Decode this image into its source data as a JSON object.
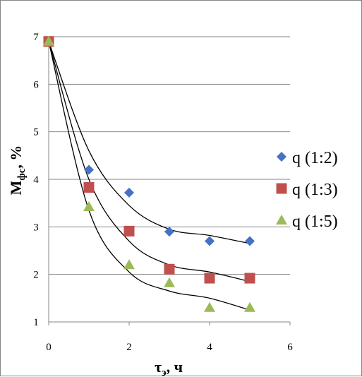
{
  "chart_data": {
    "type": "scatter",
    "title": "",
    "xlabel_main": "τ",
    "xlabel_sub": "э",
    "xlabel_rest": ", ч",
    "ylabel_main": "М",
    "ylabel_sub": "фс",
    "ylabel_rest": ", %",
    "xlim": [
      0,
      6
    ],
    "ylim": [
      1,
      7
    ],
    "xticks": [
      0,
      2,
      4,
      6
    ],
    "yticks": [
      1,
      2,
      3,
      4,
      5,
      6,
      7
    ],
    "grid": "horizontal",
    "legend_position": "right",
    "series": [
      {
        "name": "q (1:2)",
        "marker": "diamond",
        "color": "#4472c4",
        "x": [
          0,
          1,
          2,
          3,
          4,
          5
        ],
        "y": [
          6.9,
          4.2,
          3.72,
          2.9,
          2.7,
          2.7
        ],
        "trend_y": [
          6.9,
          4.6,
          3.45,
          2.95,
          2.82,
          2.65
        ]
      },
      {
        "name": "q (1:3)",
        "marker": "square",
        "color": "#c0504d",
        "x": [
          0,
          1,
          2,
          3,
          4,
          5
        ],
        "y": [
          6.9,
          3.83,
          2.91,
          2.11,
          1.92,
          1.92
        ],
        "trend_y": [
          6.9,
          4.0,
          2.7,
          2.2,
          2.05,
          1.85
        ]
      },
      {
        "name": "q (1:5)",
        "marker": "triangle",
        "color": "#9bbb59",
        "x": [
          0,
          1,
          2,
          3,
          4,
          5
        ],
        "y": [
          6.9,
          3.42,
          2.2,
          1.82,
          1.3,
          1.3
        ],
        "trend_y": [
          6.9,
          3.35,
          2.05,
          1.65,
          1.5,
          1.25
        ]
      }
    ]
  }
}
